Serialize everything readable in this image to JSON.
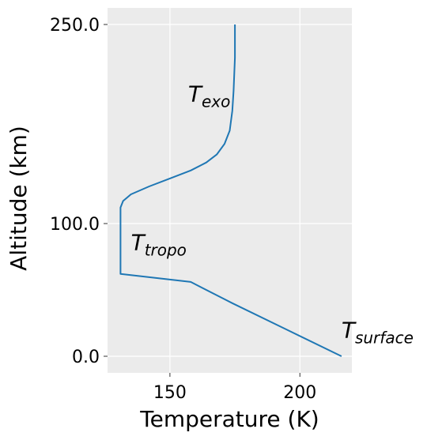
{
  "chart_data": {
    "type": "line",
    "title": "",
    "xlabel": "Temperature (K)",
    "ylabel": "Altitude (km)",
    "xlim": [
      126,
      220
    ],
    "ylim": [
      -12.5,
      262.5
    ],
    "x_ticks": [
      150,
      200
    ],
    "x_tick_labels": [
      "150",
      "200"
    ],
    "y_ticks": [
      0,
      100,
      250
    ],
    "y_tick_labels": [
      "0.0",
      "100.0",
      "250.0"
    ],
    "grid": true,
    "background": "#ebebeb",
    "series": [
      {
        "color": "#1f77b4",
        "points": [
          [
            216,
            0
          ],
          [
            195,
            20
          ],
          [
            174,
            40
          ],
          [
            158,
            56
          ],
          [
            131,
            62
          ],
          [
            131,
            80
          ],
          [
            131,
            100
          ],
          [
            131,
            112
          ],
          [
            132,
            117
          ],
          [
            135,
            122
          ],
          [
            142,
            128
          ],
          [
            150,
            134
          ],
          [
            158,
            140
          ],
          [
            164,
            146
          ],
          [
            168,
            152
          ],
          [
            171,
            160
          ],
          [
            173,
            170
          ],
          [
            174,
            185
          ],
          [
            174.5,
            200
          ],
          [
            175,
            225
          ],
          [
            175,
            250
          ]
        ]
      }
    ],
    "annotations": [
      {
        "base": "T",
        "sub": "exo",
        "x": 157,
        "y": 192
      },
      {
        "base": "T",
        "sub": "tropo",
        "x": 135,
        "y": 80
      },
      {
        "base": "T",
        "sub": "surface",
        "x": 216,
        "y": 14
      }
    ]
  }
}
